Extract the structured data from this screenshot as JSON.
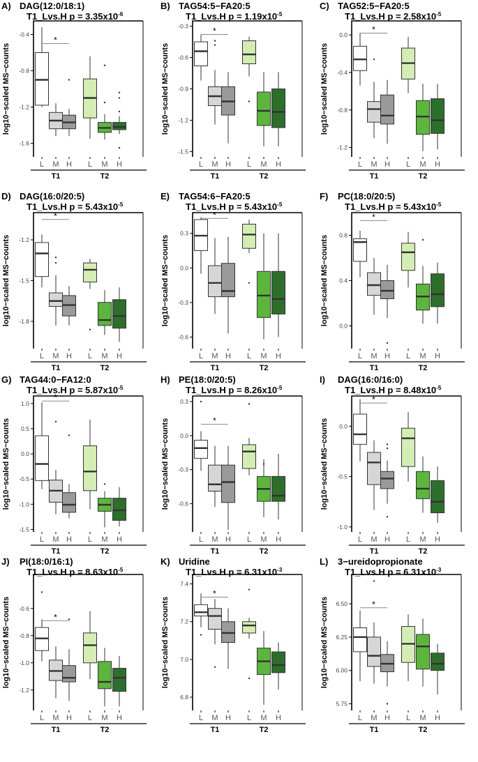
{
  "figure": {
    "group_levels": [
      "L",
      "M",
      "H"
    ],
    "groups": [
      "T1",
      "T2"
    ],
    "fill_colors": [
      "#ffffff",
      "#d6d6d6",
      "#9a9a9a",
      "#d4edb4",
      "#5cb63c",
      "#2e6e2c"
    ],
    "ylabel": "log10−scaled MS−counts"
  },
  "chart_data": [
    {
      "type": "boxplot",
      "panel": "A)",
      "title": "DAG(12:0/18:1)",
      "p_label": "T1_Lvs.H p = 3.35x10",
      "p_exp": "-6",
      "ylim": [
        -1.75,
        -0.25
      ],
      "ticks": [
        -1.6,
        -1.2,
        -0.8,
        -0.4
      ],
      "tick_labels": [
        "-1.6",
        "-1.2",
        "-0.8",
        "-0.4"
      ],
      "sig_y": -0.5,
      "boxes": [
        {
          "q1": -1.18,
          "med": -0.9,
          "q3": -0.6,
          "lo": -1.2,
          "hi": -0.32,
          "out": []
        },
        {
          "q1": -1.44,
          "med": -1.35,
          "q3": -1.26,
          "lo": -1.52,
          "hi": -1.16,
          "out": []
        },
        {
          "q1": -1.44,
          "med": -1.37,
          "q3": -1.29,
          "lo": -1.52,
          "hi": -1.22,
          "out": [
            -0.9
          ]
        },
        {
          "q1": -1.32,
          "med": -1.1,
          "q3": -0.89,
          "lo": -1.55,
          "hi": -0.64,
          "out": []
        },
        {
          "q1": -1.48,
          "med": -1.43,
          "q3": -1.37,
          "lo": -1.56,
          "hi": -1.28,
          "out": [
            -0.74,
            -1.15
          ]
        },
        {
          "q1": -1.45,
          "med": -1.42,
          "q3": -1.37,
          "lo": -1.5,
          "hi": -1.3,
          "out": [
            -1.04,
            -1.1,
            -1.25,
            -1.65
          ]
        }
      ]
    },
    {
      "type": "boxplot",
      "panel": "B)",
      "title": "TAG54:5−FA20:5",
      "p_label": "T1_Lvs.H p = 1.19x10",
      "p_exp": "-5",
      "ylim": [
        -1.55,
        -0.25
      ],
      "ticks": [
        -1.5,
        -1.2,
        -0.9,
        -0.6,
        -0.3
      ],
      "tick_labels": [
        "-1.5",
        "-1.2",
        "-0.9",
        "-0.6",
        "-0.3"
      ],
      "sig_y": -0.38,
      "boxes": [
        {
          "q1": -0.68,
          "med": -0.54,
          "q3": -0.45,
          "lo": -0.82,
          "hi": -0.38,
          "out": []
        },
        {
          "q1": -1.06,
          "med": -0.97,
          "q3": -0.88,
          "lo": -1.24,
          "hi": -0.72,
          "out": [
            -0.44,
            -0.48
          ]
        },
        {
          "q1": -1.15,
          "med": -1.02,
          "q3": -0.88,
          "lo": -1.42,
          "hi": -0.74,
          "out": []
        },
        {
          "q1": -0.66,
          "med": -0.57,
          "q3": -0.44,
          "lo": -0.78,
          "hi": -0.4,
          "out": [
            -1.02
          ]
        },
        {
          "q1": -1.25,
          "med": -1.11,
          "q3": -0.93,
          "lo": -1.45,
          "hi": -0.74,
          "out": []
        },
        {
          "q1": -1.27,
          "med": -1.12,
          "q3": -0.9,
          "lo": -1.45,
          "hi": -0.74,
          "out": []
        }
      ]
    },
    {
      "type": "boxplot",
      "panel": "C)",
      "title": "TAG52:5−FA20:5",
      "p_label": "T1_Lvs.H p = 2.58x10",
      "p_exp": "-5",
      "ylim": [
        -1.3,
        0.15
      ],
      "ticks": [
        -1.2,
        -0.8,
        -0.4,
        0.0
      ],
      "tick_labels": [
        "-1.2",
        "-0.8",
        "-0.4",
        "0.0"
      ],
      "sig_y": 0.02,
      "boxes": [
        {
          "q1": -0.38,
          "med": -0.26,
          "q3": -0.12,
          "lo": -0.54,
          "hi": 0.02,
          "out": []
        },
        {
          "q1": -0.93,
          "med": -0.79,
          "q3": -0.71,
          "lo": -1.1,
          "hi": -0.5,
          "out": [
            -0.26
          ]
        },
        {
          "q1": -0.95,
          "med": -0.86,
          "q3": -0.64,
          "lo": -1.16,
          "hi": -0.48,
          "out": []
        },
        {
          "q1": -0.47,
          "med": -0.3,
          "q3": -0.14,
          "lo": -0.62,
          "hi": -0.02,
          "out": []
        },
        {
          "q1": -1.06,
          "med": -0.87,
          "q3": -0.7,
          "lo": -1.24,
          "hi": -0.52,
          "out": []
        },
        {
          "q1": -1.05,
          "med": -0.91,
          "q3": -0.68,
          "lo": -1.22,
          "hi": -0.52,
          "out": []
        }
      ]
    },
    {
      "type": "boxplot",
      "panel": "D)",
      "title": "DAG(16:0/20:5)",
      "p_label": "T1_Lvs.H p = 5.43x10",
      "p_exp": "-5",
      "ylim": [
        -2.0,
        -1.0
      ],
      "ticks": [
        -1.8,
        -1.5,
        -1.2
      ],
      "tick_labels": [
        "-1.8",
        "-1.5",
        "-1.2"
      ],
      "sig_y": -1.05,
      "boxes": [
        {
          "q1": -1.47,
          "med": -1.3,
          "q3": -1.22,
          "lo": -1.55,
          "hi": -1.16,
          "out": []
        },
        {
          "q1": -1.69,
          "med": -1.65,
          "q3": -1.59,
          "lo": -1.83,
          "hi": -1.46,
          "out": [
            -1.37,
            -1.33
          ]
        },
        {
          "q1": -1.76,
          "med": -1.68,
          "q3": -1.61,
          "lo": -1.83,
          "hi": -1.54,
          "out": []
        },
        {
          "q1": -1.51,
          "med": -1.42,
          "q3": -1.37,
          "lo": -1.56,
          "hi": -1.34,
          "out": [
            -1.86
          ]
        },
        {
          "q1": -1.83,
          "med": -1.79,
          "q3": -1.66,
          "lo": -1.9,
          "hi": -1.57,
          "out": []
        },
        {
          "q1": -1.85,
          "med": -1.76,
          "q3": -1.64,
          "lo": -1.95,
          "hi": -1.55,
          "out": []
        }
      ]
    },
    {
      "type": "boxplot",
      "panel": "E)",
      "title": "TAG54:6−FA20:5",
      "p_label": "T1_Lvs.H p = 5.43x10",
      "p_exp": "-5",
      "ylim": [
        -0.7,
        0.48
      ],
      "ticks": [
        -0.6,
        -0.3,
        0.0,
        0.3
      ],
      "tick_labels": [
        "-0.6",
        "-0.3",
        "0.0",
        "0.3"
      ],
      "sig_y": 0.43,
      "boxes": [
        {
          "q1": 0.15,
          "med": 0.28,
          "q3": 0.42,
          "lo": -0.05,
          "hi": 0.44,
          "out": []
        },
        {
          "q1": -0.25,
          "med": -0.13,
          "q3": 0.02,
          "lo": -0.4,
          "hi": 0.26,
          "out": []
        },
        {
          "q1": -0.25,
          "med": -0.2,
          "q3": 0.04,
          "lo": -0.57,
          "hi": 0.27,
          "out": []
        },
        {
          "q1": 0.17,
          "med": 0.29,
          "q3": 0.38,
          "lo": 0.13,
          "hi": 0.42,
          "out": [
            -0.13
          ]
        },
        {
          "q1": -0.43,
          "med": -0.24,
          "q3": -0.03,
          "lo": -0.62,
          "hi": 0.3,
          "out": []
        },
        {
          "q1": -0.4,
          "med": -0.27,
          "q3": -0.03,
          "lo": -0.6,
          "hi": 0.3,
          "out": []
        }
      ]
    },
    {
      "type": "boxplot",
      "panel": "F)",
      "title": "PC(18:0/20:5)",
      "p_label": "T1_Lvs.H p = 5.43x10",
      "p_exp": "-5",
      "ylim": [
        -0.2,
        1.0
      ],
      "ticks": [
        0.0,
        0.4,
        0.8
      ],
      "tick_labels": [
        "0.0",
        "0.4",
        "0.8"
      ],
      "sig_y": 0.93,
      "boxes": [
        {
          "q1": 0.57,
          "med": 0.74,
          "q3": 0.77,
          "lo": 0.43,
          "hi": 0.84,
          "out": []
        },
        {
          "q1": 0.27,
          "med": 0.36,
          "q3": 0.47,
          "lo": 0.1,
          "hi": 0.6,
          "out": []
        },
        {
          "q1": 0.24,
          "med": 0.31,
          "q3": 0.4,
          "lo": 0.07,
          "hi": 0.54,
          "out": [
            -0.15
          ]
        },
        {
          "q1": 0.49,
          "med": 0.65,
          "q3": 0.73,
          "lo": 0.34,
          "hi": 0.83,
          "out": []
        },
        {
          "q1": 0.14,
          "med": 0.26,
          "q3": 0.37,
          "lo": 0.02,
          "hi": 0.53,
          "out": [
            0.76
          ]
        },
        {
          "q1": 0.17,
          "med": 0.28,
          "q3": 0.46,
          "lo": 0.02,
          "hi": 0.56,
          "out": []
        }
      ]
    },
    {
      "type": "boxplot",
      "panel": "G)",
      "title": "TAG44:0−FA12:0",
      "p_label": "T1_Lvs.H p = 5.87x10",
      "p_exp": "-5",
      "ylim": [
        -1.55,
        1.15
      ],
      "ticks": [
        -1.5,
        -1.0,
        -0.5,
        0.0,
        0.5,
        1.0
      ],
      "tick_labels": [
        "-1.5",
        "-1.0",
        "-0.5",
        "0.0",
        "0.5",
        "1.0"
      ],
      "sig_y": 1.05,
      "boxes": [
        {
          "q1": -0.53,
          "med": -0.2,
          "q3": 0.36,
          "lo": -0.7,
          "hi": 1.02,
          "out": []
        },
        {
          "q1": -0.96,
          "med": -0.73,
          "q3": -0.52,
          "lo": -1.2,
          "hi": -0.32,
          "out": [
            0.64
          ]
        },
        {
          "q1": -1.16,
          "med": -1.01,
          "q3": -0.77,
          "lo": -1.28,
          "hi": -0.6,
          "out": [
            0.37
          ]
        },
        {
          "q1": -0.73,
          "med": -0.35,
          "q3": 0.16,
          "lo": -1.1,
          "hi": 0.68,
          "out": []
        },
        {
          "q1": -1.14,
          "med": -1.01,
          "q3": -0.88,
          "lo": -1.46,
          "hi": -0.74,
          "out": [
            -0.6
          ]
        },
        {
          "q1": -1.32,
          "med": -1.12,
          "q3": -0.88,
          "lo": -1.44,
          "hi": -0.66,
          "out": []
        }
      ]
    },
    {
      "type": "boxplot",
      "panel": "H)",
      "title": "PE(18:0/20:5)",
      "p_label": "T1_Lvs.H p = 8.26x10",
      "p_exp": "-5",
      "ylim": [
        -0.85,
        0.35
      ],
      "ticks": [
        -0.6,
        -0.3,
        0.0,
        0.3
      ],
      "tick_labels": [
        "-0.6",
        "-0.3",
        "0.0",
        "0.3"
      ],
      "sig_y": 0.1,
      "boxes": [
        {
          "q1": -0.2,
          "med": -0.11,
          "q3": -0.04,
          "lo": -0.31,
          "hi": 0.04,
          "out": [
            0.3
          ]
        },
        {
          "q1": -0.49,
          "med": -0.43,
          "q3": -0.26,
          "lo": -0.63,
          "hi": -0.09,
          "out": []
        },
        {
          "q1": -0.59,
          "med": -0.41,
          "q3": -0.26,
          "lo": -0.83,
          "hi": -0.09,
          "out": []
        },
        {
          "q1": -0.29,
          "med": -0.14,
          "q3": -0.08,
          "lo": -0.35,
          "hi": -0.02,
          "out": [
            0.28
          ]
        },
        {
          "q1": -0.58,
          "med": -0.47,
          "q3": -0.36,
          "lo": -0.72,
          "hi": -0.21,
          "out": [
            -0.25
          ]
        },
        {
          "q1": -0.58,
          "med": -0.53,
          "q3": -0.36,
          "lo": -0.74,
          "hi": -0.16,
          "out": []
        }
      ]
    },
    {
      "type": "boxplot",
      "panel": "I)",
      "title": "DAG(16:0/16:0)",
      "p_label": "T1_Lvs.H p = 8.48x10",
      "p_exp": "-5",
      "ylim": [
        -1.05,
        0.3
      ],
      "ticks": [
        -1.0,
        -0.5,
        0.0
      ],
      "tick_labels": [
        "-1.0",
        "-0.5",
        "0.0"
      ],
      "sig_y": 0.23,
      "boxes": [
        {
          "q1": -0.18,
          "med": -0.08,
          "q3": 0.12,
          "lo": -0.35,
          "hi": 0.27,
          "out": []
        },
        {
          "q1": -0.58,
          "med": -0.36,
          "q3": -0.26,
          "lo": -0.83,
          "hi": -0.14,
          "out": []
        },
        {
          "q1": -0.62,
          "med": -0.52,
          "q3": -0.45,
          "lo": -0.77,
          "hi": -0.34,
          "out": [
            -0.18,
            -0.22,
            -0.9
          ]
        },
        {
          "q1": -0.4,
          "med": -0.12,
          "q3": -0.02,
          "lo": -0.55,
          "hi": 0.14,
          "out": []
        },
        {
          "q1": -0.72,
          "med": -0.62,
          "q3": -0.45,
          "lo": -0.86,
          "hi": -0.3,
          "out": []
        },
        {
          "q1": -0.86,
          "med": -0.75,
          "q3": -0.54,
          "lo": -0.96,
          "hi": -0.4,
          "out": []
        }
      ]
    },
    {
      "type": "boxplot",
      "panel": "J)",
      "title": "PI(18:0/16:1)",
      "p_label": "T1_Lvs.H p = 8.63x10",
      "p_exp": "-5",
      "ylim": [
        -1.35,
        -0.35
      ],
      "ticks": [
        -1.2,
        -1.0,
        -0.8,
        -0.6
      ],
      "tick_labels": [
        "-1.2",
        "-1.0",
        "-0.8",
        "-0.6"
      ],
      "sig_y": -0.69,
      "boxes": [
        {
          "q1": -0.91,
          "med": -0.82,
          "q3": -0.74,
          "lo": -0.99,
          "hi": -0.68,
          "out": [
            -0.48
          ]
        },
        {
          "q1": -1.13,
          "med": -1.06,
          "q3": -0.98,
          "lo": -1.26,
          "hi": -0.88,
          "out": []
        },
        {
          "q1": -1.14,
          "med": -1.11,
          "q3": -1.02,
          "lo": -1.28,
          "hi": -0.9,
          "out": [
            -0.68
          ]
        },
        {
          "q1": -1.0,
          "med": -0.87,
          "q3": -0.78,
          "lo": -1.12,
          "hi": -0.62,
          "out": []
        },
        {
          "q1": -1.19,
          "med": -1.14,
          "q3": -0.99,
          "lo": -1.32,
          "hi": -0.89,
          "out": []
        },
        {
          "q1": -1.21,
          "med": -1.11,
          "q3": -1.04,
          "lo": -1.32,
          "hi": -0.95,
          "out": []
        }
      ]
    },
    {
      "type": "boxplot",
      "panel": "K)",
      "title": "Uridine",
      "p_label": "T1_Lvs.H p = 6.31x10",
      "p_exp": "-3",
      "ylim": [
        6.73,
        7.45
      ],
      "ticks": [
        6.8,
        7.0,
        7.2,
        7.4
      ],
      "tick_labels": [
        "6.8",
        "7.0",
        "7.2",
        "7.4"
      ],
      "sig_y": 7.33,
      "boxes": [
        {
          "q1": 7.23,
          "med": 7.25,
          "q3": 7.29,
          "lo": 7.17,
          "hi": 7.35,
          "out": [
            7.13
          ]
        },
        {
          "q1": 7.16,
          "med": 7.23,
          "q3": 7.27,
          "lo": 7.08,
          "hi": 7.32,
          "out": [
            6.96
          ]
        },
        {
          "q1": 7.09,
          "med": 7.14,
          "q3": 7.2,
          "lo": 6.95,
          "hi": 7.27,
          "out": []
        },
        {
          "q1": 7.14,
          "med": 7.18,
          "q3": 7.2,
          "lo": 7.11,
          "hi": 7.22,
          "out": [
            7.37,
            6.9
          ]
        },
        {
          "q1": 6.92,
          "med": 6.99,
          "q3": 7.06,
          "lo": 6.76,
          "hi": 7.15,
          "out": []
        },
        {
          "q1": 6.93,
          "med": 6.97,
          "q3": 7.04,
          "lo": 6.84,
          "hi": 7.09,
          "out": []
        }
      ]
    },
    {
      "type": "boxplot",
      "panel": "L)",
      "title": "3−ureidopropionate",
      "p_label": "T1_Lvs.H p = 6.31x10",
      "p_exp": "-3",
      "ylim": [
        5.7,
        6.72
      ],
      "ticks": [
        5.75,
        6.0,
        6.25,
        6.5
      ],
      "tick_labels": [
        "5.75",
        "6.00",
        "6.25",
        "6.50"
      ],
      "sig_y": 6.47,
      "boxes": [
        {
          "q1": 6.14,
          "med": 6.25,
          "q3": 6.32,
          "lo": 5.92,
          "hi": 6.45,
          "out": []
        },
        {
          "q1": 6.03,
          "med": 6.11,
          "q3": 6.25,
          "lo": 5.9,
          "hi": 6.36,
          "out": [
            6.67
          ]
        },
        {
          "q1": 5.99,
          "med": 6.05,
          "q3": 6.12,
          "lo": 5.88,
          "hi": 6.22,
          "out": [
            5.75
          ]
        },
        {
          "q1": 6.06,
          "med": 6.2,
          "q3": 6.33,
          "lo": 5.92,
          "hi": 6.42,
          "out": []
        },
        {
          "q1": 6.01,
          "med": 6.18,
          "q3": 6.27,
          "lo": 5.88,
          "hi": 6.39,
          "out": []
        },
        {
          "q1": 6.0,
          "med": 6.05,
          "q3": 6.13,
          "lo": 5.82,
          "hi": 6.2,
          "out": []
        }
      ]
    }
  ]
}
